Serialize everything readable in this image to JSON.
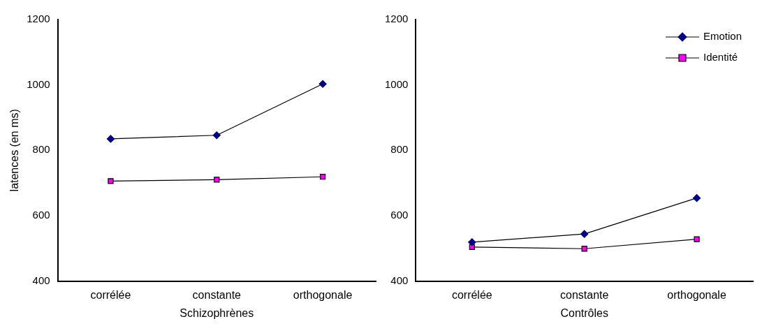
{
  "chart_data": [
    {
      "type": "line",
      "categories": [
        "corrélée",
        "constante",
        "orthogonale"
      ],
      "xlabel": "Schizophrènes",
      "ylabel": "latences (en ms)",
      "ylim": [
        400,
        1200
      ],
      "yticks": [
        400,
        600,
        800,
        1000,
        1200
      ],
      "grid": false,
      "legend": false,
      "series": [
        {
          "color": "#000080",
          "marker": "diamond",
          "values": [
            835,
            846,
            1003
          ]
        },
        {
          "color": "#ff00ff",
          "marker": "square",
          "values": [
            706,
            710,
            719
          ]
        }
      ]
    },
    {
      "type": "line",
      "categories": [
        "corrélée",
        "constante",
        "orthogonale"
      ],
      "xlabel": "Contrôles",
      "ylim": [
        400,
        1200
      ],
      "yticks": [
        400,
        600,
        800,
        1000,
        1200
      ],
      "grid": false,
      "legend": "top right",
      "series": [
        {
          "name": "Emotion",
          "color": "#000080",
          "marker": "diamond",
          "values": [
            519,
            544,
            654
          ]
        },
        {
          "name": "Identité",
          "color": "#ff00ff",
          "marker": "square",
          "values": [
            504,
            499,
            528
          ]
        }
      ]
    }
  ]
}
